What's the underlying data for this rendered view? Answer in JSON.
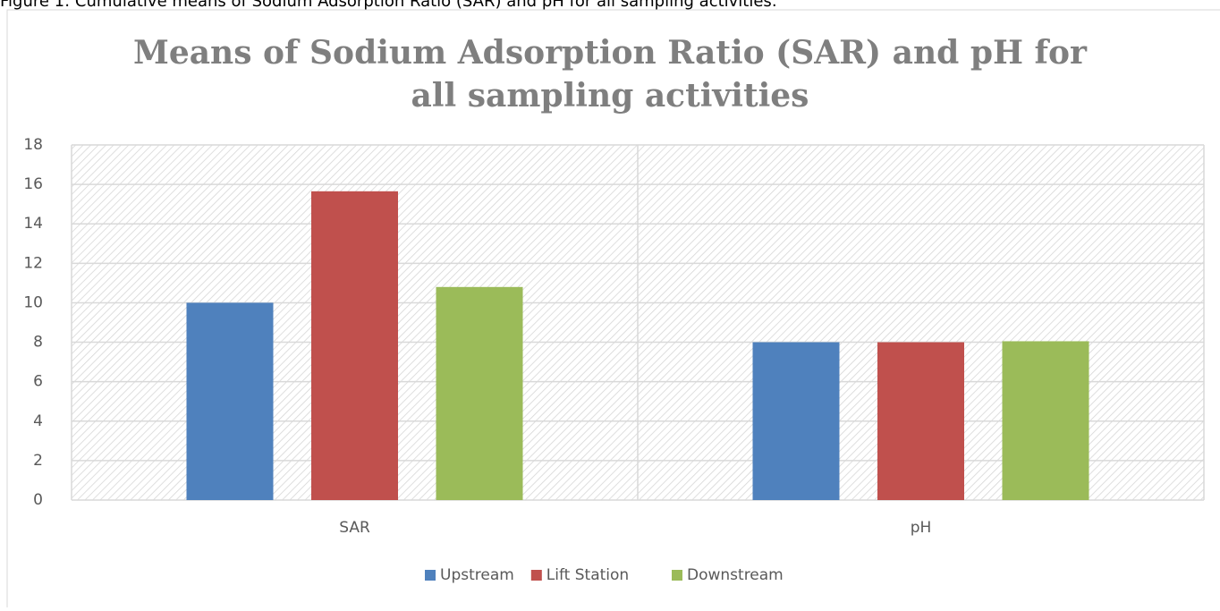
{
  "caption": "Figure 1: Cumulative means of Sodium Adsorption Ratio (SAR) and pH for all sampling activities.",
  "chart_data": {
    "type": "bar",
    "title": [
      "Means of Sodium Adsorption Ratio (SAR) and pH for",
      "all sampling activities"
    ],
    "categories": [
      "SAR",
      "pH"
    ],
    "series": [
      {
        "name": "Upstream",
        "color": "#4f81bd",
        "values": [
          10,
          8
        ]
      },
      {
        "name": "Lift Station",
        "color": "#c0504d",
        "values": [
          15.65,
          8
        ]
      },
      {
        "name": "Downstream",
        "color": "#9bbb59",
        "values": [
          10.8,
          8.05
        ]
      }
    ],
    "ylim": [
      0,
      18
    ],
    "yticks": [
      0,
      2,
      4,
      6,
      8,
      10,
      12,
      14,
      16,
      18
    ],
    "grid": true,
    "legend": "bottom"
  }
}
